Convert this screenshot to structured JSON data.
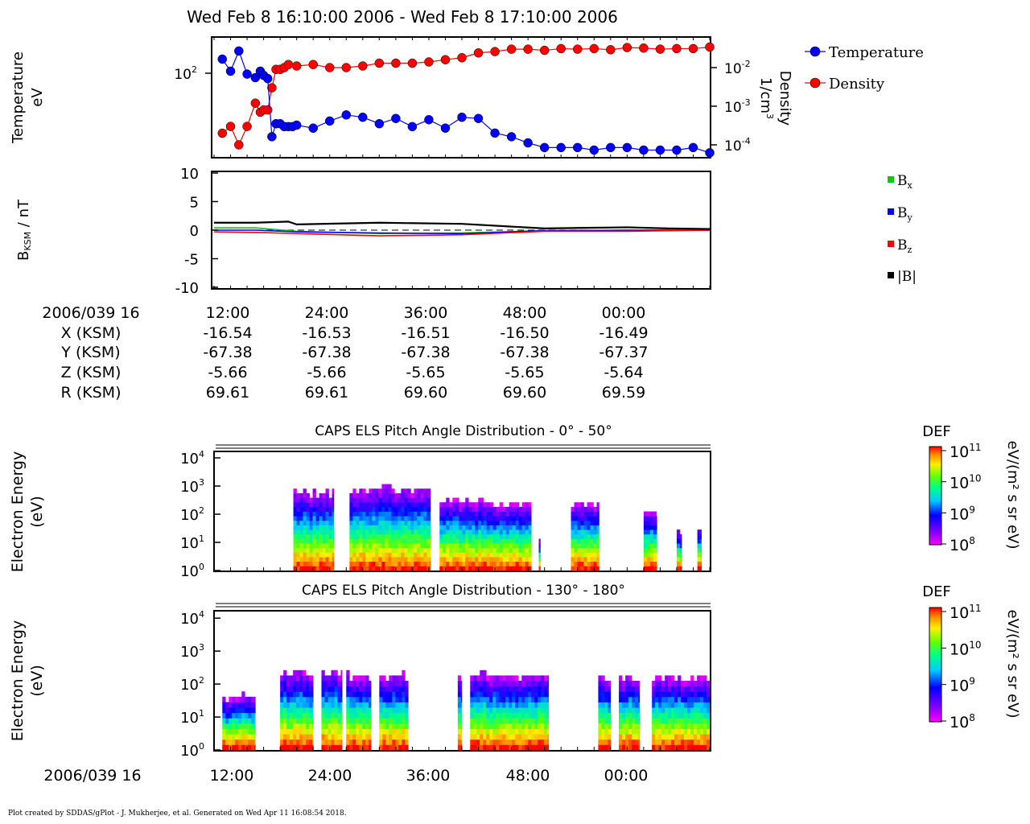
{
  "title": "Wed Feb 8 16:10:00 2006 - Wed Feb 8 17:10:00 2006",
  "footer": "Plot created by SDDAS/gPlot - J. Mukherjee, et al.  Generated on Wed Apr 11 16:08:54 2018.",
  "colors": {
    "temperature": "#0000ff",
    "density": "#ff0000",
    "bx": "#00cc00",
    "by": "#0000ff",
    "bz": "#ff0000",
    "bmag": "#000000"
  },
  "panel1": {
    "ylabel_line1": "Temperature",
    "ylabel_line2": "eV",
    "ytick_left": "10",
    "ytick_left_exp": "2",
    "ylabel_right_line1": "Density",
    "ylabel_right_line2": "1/cm",
    "ylabel_right_exp": "3",
    "right_ticks": [
      {
        "base": "10",
        "exp": "-2"
      },
      {
        "base": "10",
        "exp": "-3"
      },
      {
        "base": "10",
        "exp": "-4"
      }
    ],
    "legend": [
      {
        "label": "Temperature",
        "color": "#0000ff"
      },
      {
        "label": "Density",
        "color": "#ff0000"
      }
    ]
  },
  "panel2": {
    "ylabel_main": "B",
    "ylabel_sub": "KSM",
    "ylabel_rest": " / nT",
    "ticks": [
      "10",
      "5",
      "0",
      "-5",
      "-10"
    ],
    "legend": [
      {
        "main": "B",
        "sub": "x",
        "color": "#00cc00"
      },
      {
        "main": "B",
        "sub": "y",
        "color": "#0000ff"
      },
      {
        "main": "B",
        "sub": "z",
        "color": "#ff0000"
      },
      {
        "main": "|B|",
        "sub": "",
        "color": "#000000"
      }
    ]
  },
  "ephemeris": {
    "labels": [
      "2006/039 16",
      "X (KSM)",
      "Y (KSM)",
      "Z (KSM)",
      "R (KSM)"
    ],
    "columns": [
      [
        "12:00",
        "-16.54",
        "-67.38",
        "-5.66",
        "69.61"
      ],
      [
        "24:00",
        "-16.53",
        "-67.38",
        "-5.66",
        "69.61"
      ],
      [
        "36:00",
        "-16.51",
        "-67.38",
        "-5.65",
        "69.60"
      ],
      [
        "48:00",
        "-16.50",
        "-67.38",
        "-5.65",
        "69.60"
      ],
      [
        "00:00",
        "-16.49",
        "-67.37",
        "-5.64",
        "69.59"
      ]
    ]
  },
  "spectrogram1": {
    "title": "CAPS ELS Pitch Angle Distribution - 0° - 50°",
    "ylabel_line1": "Electron Energy",
    "ylabel_line2": "(eV)",
    "colorbar_title": "DEF",
    "colorbar_units": "eV/(m² s sr eV)"
  },
  "spectrogram2": {
    "title": "CAPS ELS Pitch Angle Distribution - 130° - 180°",
    "ylabel_line1": "Electron Energy",
    "ylabel_line2": "(eV)",
    "colorbar_title": "DEF",
    "colorbar_units": "eV/(m² s sr eV)"
  },
  "energy_ticks": [
    {
      "base": "10",
      "exp": "4"
    },
    {
      "base": "10",
      "exp": "3"
    },
    {
      "base": "10",
      "exp": "2"
    },
    {
      "base": "10",
      "exp": "1"
    },
    {
      "base": "10",
      "exp": "0"
    }
  ],
  "colorbar_ticks": [
    {
      "base": "10",
      "exp": "11"
    },
    {
      "base": "10",
      "exp": "10"
    },
    {
      "base": "10",
      "exp": "9"
    },
    {
      "base": "10",
      "exp": "8"
    }
  ],
  "bottom_axis": {
    "date_label": "2006/039 16",
    "ticks": [
      "12:00",
      "24:00",
      "36:00",
      "48:00",
      "00:00"
    ]
  },
  "chart_data": [
    {
      "type": "line",
      "panel": "plasma moments",
      "x_unit": "minutes after 16:10 UT",
      "xlim": [
        0,
        60
      ],
      "log_y": true,
      "series": [
        {
          "name": "Temperature",
          "unit": "eV",
          "x": [
            1,
            2,
            3,
            4,
            5,
            5.6,
            6,
            6.5,
            7,
            7.5,
            8,
            8.5,
            9,
            9.5,
            10,
            12,
            14,
            16,
            18,
            20,
            22,
            24,
            26,
            28,
            30,
            32,
            34,
            36,
            38,
            40,
            42,
            44,
            46,
            48,
            50,
            52,
            54,
            56,
            58,
            60
          ],
          "y": [
            140,
            105,
            170,
            98,
            90,
            105,
            95,
            88,
            22,
            30,
            30,
            28,
            28,
            28,
            29,
            27,
            32,
            37,
            35,
            30,
            34,
            28,
            33,
            27,
            35,
            34,
            24,
            22,
            19,
            17,
            17,
            17,
            16,
            17,
            17,
            16,
            16,
            16,
            17,
            15
          ]
        },
        {
          "name": "Density",
          "unit": "1/cm^3",
          "x": [
            1,
            2,
            3,
            4,
            5,
            5.6,
            6,
            6.5,
            7,
            7.5,
            8,
            8.5,
            9,
            10,
            12,
            14,
            16,
            18,
            20,
            22,
            24,
            26,
            28,
            30,
            32,
            34,
            36,
            38,
            40,
            42,
            44,
            46,
            48,
            50,
            52,
            54,
            56,
            58,
            60
          ],
          "y": [
            0.0002,
            0.0003,
            0.0001,
            0.0003,
            0.0012,
            0.0007,
            0.0008,
            0.0008,
            0.003,
            0.009,
            0.009,
            0.01,
            0.012,
            0.011,
            0.012,
            0.01,
            0.01,
            0.011,
            0.013,
            0.013,
            0.013,
            0.014,
            0.016,
            0.018,
            0.024,
            0.026,
            0.03,
            0.03,
            0.028,
            0.031,
            0.03,
            0.031,
            0.029,
            0.033,
            0.032,
            0.03,
            0.031,
            0.031,
            0.034
          ]
        }
      ]
    },
    {
      "type": "line",
      "panel": "magnetic field",
      "ylabel": "B_KSM / nT",
      "ylim": [
        -10,
        10
      ],
      "x_unit": "minutes after 16:10 UT",
      "xlim": [
        0,
        60
      ],
      "series": [
        {
          "name": "Bx",
          "x": [
            0,
            5,
            10,
            20,
            30,
            40,
            50,
            60
          ],
          "y": [
            0.4,
            0.4,
            -0.2,
            -0.6,
            -0.5,
            -0.1,
            -0.1,
            0
          ]
        },
        {
          "name": "By",
          "x": [
            0,
            5,
            10,
            20,
            30,
            40,
            50,
            60
          ],
          "y": [
            0,
            0,
            -0.3,
            -0.5,
            -0.6,
            -0.1,
            0,
            0
          ]
        },
        {
          "name": "Bz",
          "x": [
            0,
            5,
            10,
            20,
            30,
            40,
            50,
            60
          ],
          "y": [
            -0.3,
            -0.4,
            -0.6,
            -1.0,
            -0.8,
            -0.2,
            -0.2,
            0
          ]
        },
        {
          "name": "|B|",
          "x": [
            0,
            5,
            9,
            10,
            20,
            30,
            40,
            45,
            50,
            55,
            60
          ],
          "y": [
            1.3,
            1.3,
            1.5,
            1.0,
            1.3,
            1.1,
            0.3,
            0.4,
            0.5,
            0.3,
            0.2
          ]
        }
      ]
    },
    {
      "type": "heatmap",
      "panel": "CAPS ELS Pitch Angle Distribution - 0° - 50°",
      "x_unit": "minutes after 16:10 UT",
      "y_unit": "eV (log)",
      "color_range": [
        100000000.0,
        100000000000.0
      ],
      "segments": [
        {
          "x": [
            9.6,
            14.5
          ],
          "emax_log": 2.7
        },
        {
          "x": [
            16.4,
            26.2
          ],
          "emax_log": 2.8
        },
        {
          "x": [
            27.3,
            32.6
          ],
          "emax_log": 2.4
        },
        {
          "x": [
            32.6,
            38.4
          ],
          "emax_log": 2.3
        },
        {
          "x": [
            39.3,
            39.5
          ],
          "emax_log": 1.0
        },
        {
          "x": [
            43.2,
            46.6
          ],
          "emax_log": 2.3
        },
        {
          "x": [
            52.0,
            53.6
          ],
          "emax_log": 2.0
        },
        {
          "x": [
            56.0,
            56.6
          ],
          "emax_log": 1.3
        },
        {
          "x": [
            58.5,
            59.0
          ],
          "emax_log": 1.5
        }
      ]
    },
    {
      "type": "heatmap",
      "panel": "CAPS ELS Pitch Angle Distribution - 130° - 180°",
      "x_unit": "minutes after 16:10 UT",
      "y_unit": "eV (log)",
      "color_range": [
        100000000.0,
        100000000000.0
      ],
      "segments": [
        {
          "x": [
            1.0,
            5.0
          ],
          "emax_log": 1.5
        },
        {
          "x": [
            8.0,
            12.0
          ],
          "emax_log": 2.3
        },
        {
          "x": [
            13.0,
            15.5
          ],
          "emax_log": 2.3
        },
        {
          "x": [
            16.0,
            19.0
          ],
          "emax_log": 2.2
        },
        {
          "x": [
            20.0,
            23.5
          ],
          "emax_log": 2.2
        },
        {
          "x": [
            29.5,
            30.0
          ],
          "emax_log": 2.1
        },
        {
          "x": [
            31.0,
            40.5
          ],
          "emax_log": 2.2
        },
        {
          "x": [
            46.5,
            48.0
          ],
          "emax_log": 2.1
        },
        {
          "x": [
            49.0,
            51.5
          ],
          "emax_log": 2.1
        },
        {
          "x": [
            53.0,
            60.0
          ],
          "emax_log": 2.1
        }
      ]
    }
  ]
}
